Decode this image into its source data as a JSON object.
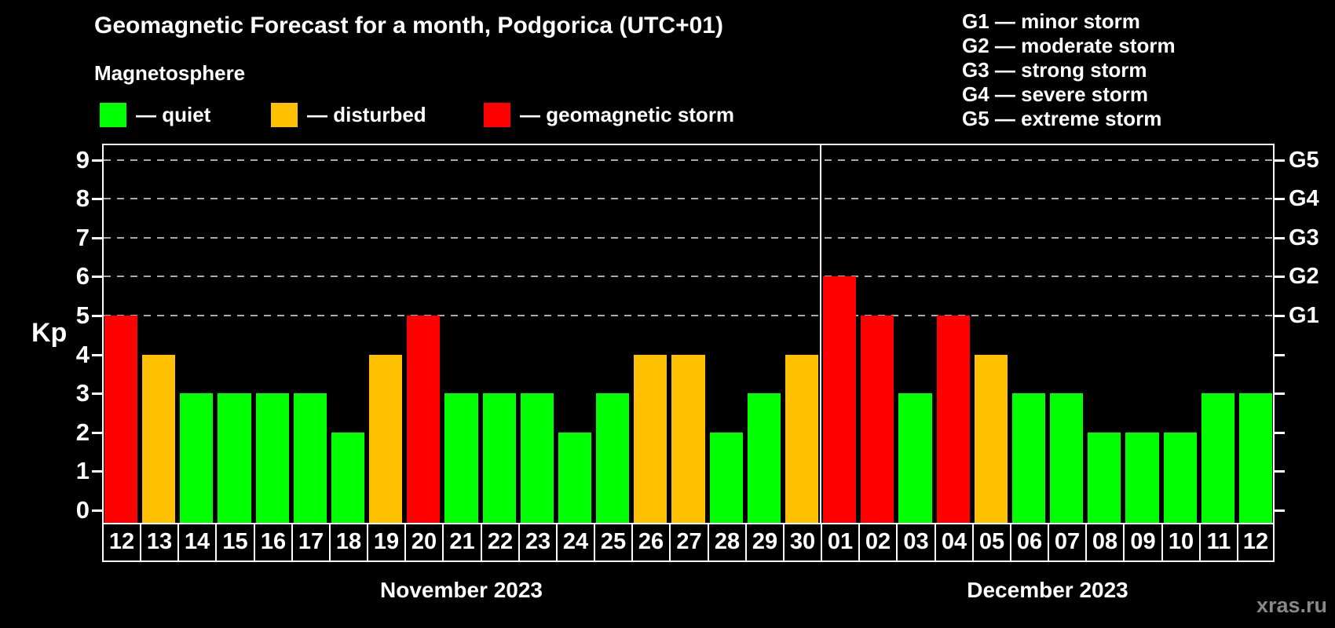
{
  "chart_data": {
    "type": "bar",
    "title": "Geomagnetic Forecast for a month, Podgorica (UTC+01)",
    "subtitle": "Magnetosphere",
    "kp_axis_label": "Kp",
    "kp_ticks": [
      "0",
      "1",
      "2",
      "3",
      "4",
      "5",
      "6",
      "7",
      "8",
      "9"
    ],
    "kp_range": [
      0,
      9
    ],
    "grid_levels_kp": [
      5,
      6,
      7,
      8,
      9
    ],
    "right_axis_labels": [
      {
        "text": "G1",
        "kp": 5
      },
      {
        "text": "G2",
        "kp": 6
      },
      {
        "text": "G3",
        "kp": 7
      },
      {
        "text": "G4",
        "kp": 8
      },
      {
        "text": "G5",
        "kp": 9
      }
    ],
    "status_colors": {
      "quiet": "#00ff00",
      "disturbed": "#ffc000",
      "storm": "#ff0000"
    },
    "status_thresholds": {
      "storm_min_kp": 5,
      "disturbed_kp": 4
    },
    "legend": [
      {
        "status": "quiet",
        "label": "— quiet"
      },
      {
        "status": "disturbed",
        "label": "— disturbed"
      },
      {
        "status": "storm",
        "label": "— geomagnetic storm"
      }
    ],
    "g_scale_legend": [
      "G1 — minor storm",
      "G2 — moderate storm",
      "G3 — strong storm",
      "G4 — severe storm",
      "G5 — extreme storm"
    ],
    "months": [
      {
        "name": "November 2023",
        "days": [
          [
            "12",
            5
          ],
          [
            "13",
            4
          ],
          [
            "14",
            3
          ],
          [
            "15",
            3
          ],
          [
            "16",
            3
          ],
          [
            "17",
            3
          ],
          [
            "18",
            2
          ],
          [
            "19",
            4
          ],
          [
            "20",
            5
          ],
          [
            "21",
            3
          ],
          [
            "22",
            3
          ],
          [
            "23",
            3
          ],
          [
            "24",
            2
          ],
          [
            "25",
            3
          ],
          [
            "26",
            4
          ],
          [
            "27",
            4
          ],
          [
            "28",
            2
          ],
          [
            "29",
            3
          ],
          [
            "30",
            4
          ]
        ]
      },
      {
        "name": "December 2023",
        "days": [
          [
            "01",
            6
          ],
          [
            "02",
            5
          ],
          [
            "03",
            3
          ],
          [
            "04",
            5
          ],
          [
            "05",
            4
          ],
          [
            "06",
            3
          ],
          [
            "07",
            3
          ],
          [
            "08",
            2
          ],
          [
            "09",
            2
          ],
          [
            "10",
            2
          ],
          [
            "11",
            3
          ],
          [
            "12",
            3
          ]
        ]
      }
    ],
    "watermark": "xras.ru"
  }
}
